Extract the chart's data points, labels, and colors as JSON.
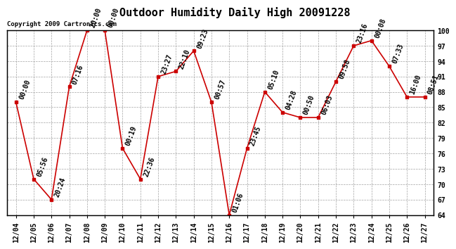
{
  "title": "Outdoor Humidity Daily High 20091228",
  "copyright": "Copyright 2009 Cartronics.com",
  "dates": [
    "12/04",
    "12/05",
    "12/06",
    "12/07",
    "12/08",
    "12/09",
    "12/10",
    "12/11",
    "12/12",
    "12/13",
    "12/14",
    "12/15",
    "12/16",
    "12/17",
    "12/18",
    "12/19",
    "12/20",
    "12/21",
    "12/22",
    "12/23",
    "12/24",
    "12/25",
    "12/26",
    "12/27"
  ],
  "values": [
    86,
    71,
    67,
    89,
    100,
    100,
    77,
    71,
    91,
    92,
    96,
    86,
    64,
    77,
    88,
    84,
    83,
    83,
    90,
    97,
    98,
    93,
    87,
    87
  ],
  "times": [
    "00:00",
    "05:56",
    "20:24",
    "07:16",
    "20:00",
    "00:00",
    "00:19",
    "22:36",
    "23:27",
    "22:10",
    "09:23",
    "00:57",
    "01:06",
    "23:45",
    "05:10",
    "04:28",
    "00:50",
    "06:03",
    "09:58",
    "23:16",
    "00:08",
    "07:33",
    "16:00",
    "08:51"
  ],
  "line_color": "#cc0000",
  "marker_color": "#cc0000",
  "bg_color": "#ffffff",
  "grid_color": "#999999",
  "ylim": [
    64,
    100
  ],
  "yticks": [
    64,
    67,
    70,
    73,
    76,
    79,
    82,
    85,
    88,
    91,
    94,
    97,
    100
  ],
  "title_fontsize": 11,
  "tick_fontsize": 7,
  "label_fontsize": 7,
  "copyright_fontsize": 6.5
}
